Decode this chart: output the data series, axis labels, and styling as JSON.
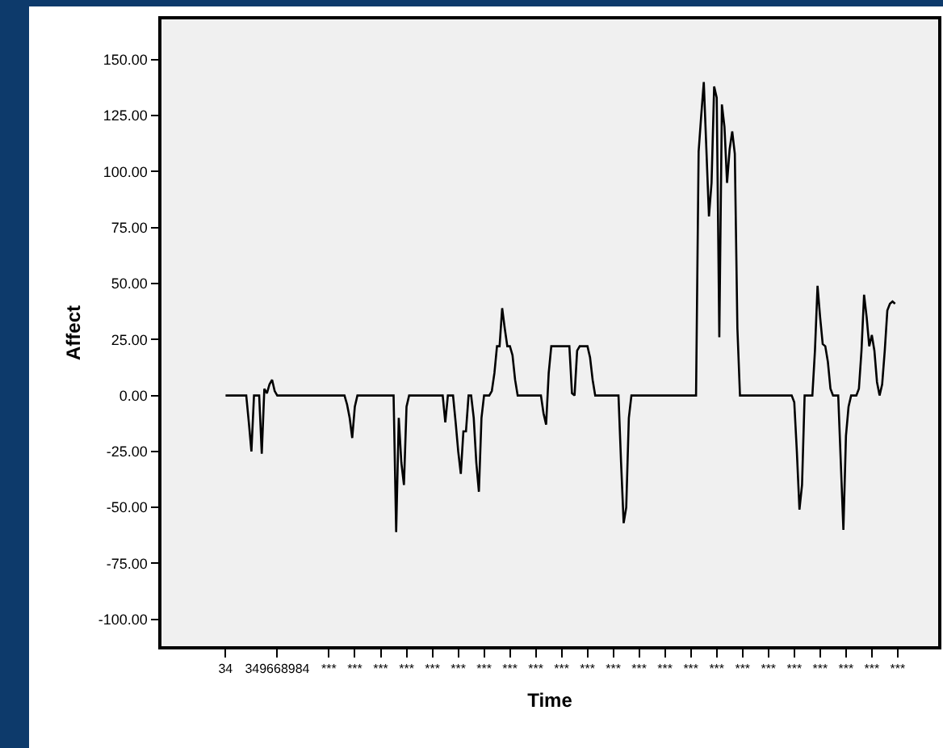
{
  "chart_data": {
    "type": "line",
    "xlabel": "Time",
    "ylabel": "Affect",
    "color": "#000000",
    "grid": false,
    "marker": "none",
    "line_style": "solid",
    "categories": [
      "34",
      null,
      null,
      null,
      null,
      null,
      null,
      null,
      null,
      null,
      null,
      null,
      null,
      null,
      null,
      null,
      null,
      null,
      null,
      null,
      "349668984",
      null,
      null,
      null,
      null,
      null,
      null,
      null,
      null,
      null,
      null,
      null,
      null,
      null,
      null,
      null,
      null,
      null,
      null,
      null,
      "***",
      null,
      null,
      null,
      null,
      null,
      null,
      null,
      null,
      null,
      "***",
      null,
      null,
      null,
      null,
      null,
      null,
      null,
      null,
      null,
      "***",
      null,
      null,
      null,
      null,
      null,
      null,
      null,
      null,
      null,
      "***",
      null,
      null,
      null,
      null,
      null,
      null,
      null,
      null,
      null,
      "***",
      null,
      null,
      null,
      null,
      null,
      null,
      null,
      null,
      null,
      "***",
      null,
      null,
      null,
      null,
      null,
      null,
      null,
      null,
      null,
      "***",
      null,
      null,
      null,
      null,
      null,
      null,
      null,
      null,
      null,
      "***",
      null,
      null,
      null,
      null,
      null,
      null,
      null,
      null,
      null,
      "***",
      null,
      null,
      null,
      null,
      null,
      null,
      null,
      null,
      null,
      "***",
      null,
      null,
      null,
      null,
      null,
      null,
      null,
      null,
      null,
      "***",
      null,
      null,
      null,
      null,
      null,
      null,
      null,
      null,
      null,
      "***",
      null,
      null,
      null,
      null,
      null,
      null,
      null,
      null,
      null,
      "***",
      null,
      null,
      null,
      null,
      null,
      null,
      null,
      null,
      null,
      "***",
      null,
      null,
      null,
      null,
      null,
      null,
      null,
      null,
      null,
      "***",
      null,
      null,
      null,
      null,
      null,
      null,
      null,
      null,
      null,
      "***",
      null,
      null,
      null,
      null,
      null,
      null,
      null,
      null,
      null,
      "***",
      null,
      null,
      null,
      null,
      null,
      null,
      null,
      null,
      null,
      "***",
      null,
      null,
      null,
      null,
      null,
      null,
      null,
      null,
      null,
      "***",
      null,
      null,
      null,
      null,
      null,
      null,
      null,
      null,
      null,
      "***",
      null,
      null,
      null,
      null,
      null,
      null,
      null,
      null,
      null,
      "***",
      null,
      null,
      null,
      null,
      null,
      null,
      null,
      null,
      null,
      "***",
      null,
      null,
      null,
      null,
      null,
      null,
      null,
      null,
      null,
      "***"
    ],
    "values": [
      0,
      0,
      0,
      0,
      0,
      0,
      0,
      0,
      0,
      -12,
      -25,
      0,
      0,
      0,
      -26,
      3,
      1,
      5,
      7,
      2,
      0,
      0,
      0,
      0,
      0,
      0,
      0,
      0,
      0,
      0,
      0,
      0,
      0,
      0,
      0,
      0,
      0,
      0,
      0,
      0,
      0,
      0,
      0,
      0,
      0,
      0,
      0,
      -4,
      -10,
      -19,
      -5,
      0,
      0,
      0,
      0,
      0,
      0,
      0,
      0,
      0,
      0,
      0,
      0,
      0,
      0,
      0,
      -61,
      -10,
      -30,
      -40,
      -5,
      0,
      0,
      0,
      0,
      0,
      0,
      0,
      0,
      0,
      0,
      0,
      0,
      0,
      0,
      -12,
      0,
      0,
      0,
      -12,
      -25,
      -35,
      -16,
      -16,
      0,
      0,
      -10,
      -30,
      -43,
      -10,
      0,
      0,
      0,
      2,
      10,
      22,
      22,
      39,
      30,
      22,
      22,
      18,
      7,
      0,
      0,
      0,
      0,
      0,
      0,
      0,
      0,
      0,
      0,
      -8,
      -13,
      10,
      22,
      22,
      22,
      22,
      22,
      22,
      22,
      22,
      1,
      0,
      20,
      22,
      22,
      22,
      22,
      17,
      7,
      0,
      0,
      0,
      0,
      0,
      0,
      0,
      0,
      0,
      0,
      -30,
      -57,
      -50,
      -10,
      0,
      0,
      0,
      0,
      0,
      0,
      0,
      0,
      0,
      0,
      0,
      0,
      0,
      0,
      0,
      0,
      0,
      0,
      0,
      0,
      0,
      0,
      0,
      0,
      0,
      0,
      109,
      125,
      140,
      110,
      80,
      95,
      138,
      133,
      26,
      130,
      120,
      95,
      110,
      118,
      108,
      30,
      0,
      0,
      0,
      0,
      0,
      0,
      0,
      0,
      0,
      0,
      0,
      0,
      0,
      0,
      0,
      0,
      0,
      0,
      0,
      0,
      0,
      -3,
      -25,
      -51,
      -40,
      0,
      0,
      0,
      0,
      20,
      49,
      35,
      23,
      22,
      15,
      3,
      0,
      0,
      0,
      -30,
      -60,
      -18,
      -5,
      0,
      0,
      0,
      3,
      20,
      45,
      35,
      22,
      27,
      20,
      6,
      0,
      5,
      20,
      38,
      41,
      42,
      41,
      null
    ],
    "ylim": [
      -112,
      168
    ],
    "yticks": [
      {
        "value": -100,
        "label": "-100.00"
      },
      {
        "value": -75,
        "label": "-75.00"
      },
      {
        "value": -50,
        "label": "-50.00"
      },
      {
        "value": -25,
        "label": "-25.00"
      },
      {
        "value": 0,
        "label": "0.00"
      },
      {
        "value": 25,
        "label": "25.00"
      },
      {
        "value": 50,
        "label": "50.00"
      },
      {
        "value": 75,
        "label": "75.00"
      },
      {
        "value": 100,
        "label": "100.00"
      },
      {
        "value": 125,
        "label": "125.00"
      },
      {
        "value": 150,
        "label": "150.00"
      }
    ]
  }
}
